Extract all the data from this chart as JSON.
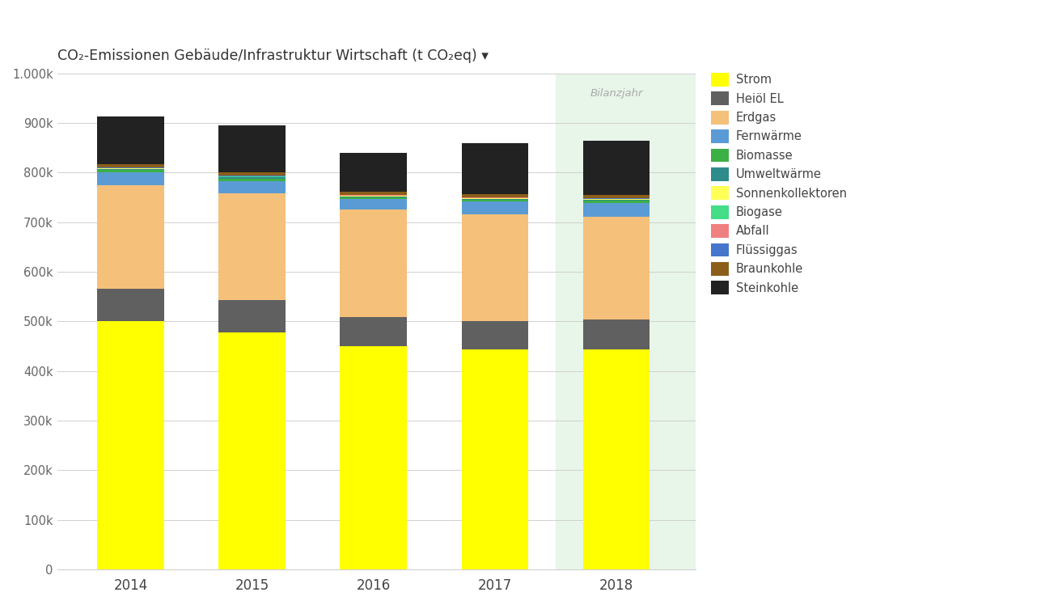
{
  "title": "CO₂-Emissionen Gebäude/Infrastruktur Wirtschaft (t CO₂eq) ▾",
  "years": [
    "2014",
    "2015",
    "2016",
    "2017",
    "2018"
  ],
  "categories": [
    "Strom",
    "Heiöl EL",
    "Erdgas",
    "Fernwärme",
    "Biomasse",
    "Umweltwärme",
    "Sonnenkollektoren",
    "Biogase",
    "Abfall",
    "Flüssiggas",
    "Braunkohle",
    "Steinkohle"
  ],
  "colors": [
    "#ffff00",
    "#606060",
    "#f5c07a",
    "#5b9bd5",
    "#3cb045",
    "#2e8b8b",
    "#ffff55",
    "#44dd88",
    "#f08080",
    "#4477cc",
    "#8B5E1A",
    "#222222"
  ],
  "values": {
    "Strom": [
      500000,
      478000,
      450000,
      443000,
      443000
    ],
    "Heiöl EL": [
      65000,
      65000,
      58000,
      58000,
      60000
    ],
    "Erdgas": [
      210000,
      215000,
      218000,
      215000,
      208000
    ],
    "Fernwärme": [
      25000,
      25000,
      20000,
      25000,
      28000
    ],
    "Biomasse": [
      4500,
      4500,
      3500,
      3500,
      3500
    ],
    "Umweltwärme": [
      2500,
      2500,
      2500,
      2500,
      2500
    ],
    "Sonnenkollektoren": [
      1000,
      1000,
      1000,
      1000,
      1000
    ],
    "Biogase": [
      500,
      500,
      500,
      500,
      500
    ],
    "Abfall": [
      500,
      500,
      500,
      500,
      500
    ],
    "Flüssiggas": [
      1500,
      1500,
      1500,
      1500,
      1500
    ],
    "Braunkohle": [
      6000,
      7000,
      6000,
      6000,
      7000
    ],
    "Steinkohle": [
      97000,
      94000,
      78000,
      103000,
      108000
    ]
  },
  "ylim": [
    0,
    1000000
  ],
  "yticks": [
    0,
    100000,
    200000,
    300000,
    400000,
    500000,
    600000,
    700000,
    800000,
    900000,
    1000000
  ],
  "ytick_labels": [
    "0",
    "100k",
    "200k",
    "300k",
    "400k",
    "500k",
    "600k",
    "700k",
    "800k",
    "900k",
    "1.000k"
  ],
  "highlight_year_idx": 4,
  "highlight_color": "#e8f5e9",
  "bilanzjahr_label": "Bilanzjahr",
  "background_color": "#ffffff",
  "grid_color": "#d0d0d0",
  "bar_width": 0.55
}
